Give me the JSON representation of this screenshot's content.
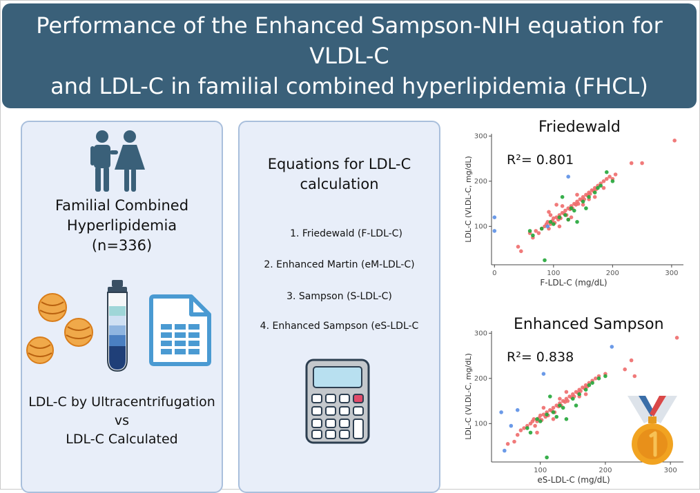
{
  "header": {
    "title_line1": "Performance of the Enhanced Sampson-NIH equation for VLDL-C",
    "title_line2": "and LDL-C in familial combined hyperlipidemia (FHCL)"
  },
  "left_panel": {
    "cohort_line1": "Familial Combined",
    "cohort_line2": "Hyperlipidemia",
    "cohort_n": "(n=336)",
    "compare_line1": "LDL-C by Ultracentrifugation",
    "compare_vs": "vs",
    "compare_line2": "LDL-C Calculated",
    "icons": [
      "people-icon",
      "lipoprotein-particles-icon",
      "test-tube-icon",
      "spreadsheet-icon"
    ]
  },
  "middle_panel": {
    "heading_line1": "Equations for LDL-C",
    "heading_line2": "calculation",
    "equations": [
      "1.  Friedewald (F-LDL-C)",
      "2. Enhanced Martin (eM-LDL-C)",
      "3. Sampson (S-LDL-C)",
      "4. Enhanced Sampson (eS-LDL-C"
    ],
    "icons": [
      "calculator-icon"
    ]
  },
  "colors": {
    "banner": "#3a6079",
    "panel_bg": "#e8eef9",
    "panel_border": "#a9bfdc",
    "series_red": "#ee6b6b",
    "series_green": "#22a638",
    "series_blue": "#5b8fe6",
    "medal_gold": "#f1a321"
  },
  "chart_data": [
    {
      "type": "scatter",
      "title": "Friedewald",
      "annotation": "R²= 0.801",
      "xlabel": "F-LDL-C (mg/dL)",
      "ylabel": "LDL-C (VLDL-C, mg/dL)",
      "xlim": [
        -5,
        320
      ],
      "ylim": [
        15,
        305
      ],
      "x_ticks": [
        0,
        100,
        200,
        300
      ],
      "y_ticks": [
        100,
        200,
        300
      ],
      "grid": false,
      "series": [
        {
          "color": "#ee6b6b",
          "points": [
            [
              305,
              290
            ],
            [
              232,
              240
            ],
            [
              250,
              240
            ],
            [
              40,
              55
            ],
            [
              45,
              45
            ],
            [
              60,
              85
            ],
            [
              65,
              75
            ],
            [
              70,
              90
            ],
            [
              75,
              85
            ],
            [
              80,
              95
            ],
            [
              85,
              100
            ],
            [
              88,
              105
            ],
            [
              90,
              110
            ],
            [
              92,
              95
            ],
            [
              95,
              105
            ],
            [
              98,
              112
            ],
            [
              100,
              118
            ],
            [
              102,
              108
            ],
            [
              105,
              120
            ],
            [
              108,
              115
            ],
            [
              110,
              125
            ],
            [
              112,
              118
            ],
            [
              115,
              130
            ],
            [
              118,
              128
            ],
            [
              120,
              135
            ],
            [
              122,
              125
            ],
            [
              125,
              140
            ],
            [
              128,
              138
            ],
            [
              130,
              145
            ],
            [
              132,
              140
            ],
            [
              135,
              150
            ],
            [
              138,
              148
            ],
            [
              140,
              155
            ],
            [
              142,
              150
            ],
            [
              145,
              160
            ],
            [
              148,
              158
            ],
            [
              150,
              165
            ],
            [
              152,
              160
            ],
            [
              155,
              170
            ],
            [
              158,
              168
            ],
            [
              160,
              175
            ],
            [
              162,
              172
            ],
            [
              165,
              180
            ],
            [
              168,
              178
            ],
            [
              170,
              185
            ],
            [
              172,
              182
            ],
            [
              175,
              190
            ],
            [
              180,
              195
            ],
            [
              185,
              200
            ],
            [
              190,
              205
            ],
            [
              195,
              210
            ],
            [
              200,
              205
            ],
            [
              205,
              215
            ],
            [
              105,
              148
            ],
            [
              92,
              132
            ],
            [
              130,
              120
            ],
            [
              150,
              148
            ],
            [
              140,
              170
            ],
            [
              160,
              160
            ],
            [
              125,
              115
            ],
            [
              110,
              100
            ],
            [
              95,
              125
            ],
            [
              170,
              165
            ],
            [
              185,
              185
            ],
            [
              115,
              145
            ]
          ]
        },
        {
          "color": "#22a638",
          "points": [
            [
              65,
              80
            ],
            [
              80,
              95
            ],
            [
              95,
              110
            ],
            [
              100,
              105
            ],
            [
              110,
              120
            ],
            [
              120,
              125
            ],
            [
              125,
              115
            ],
            [
              130,
              140
            ],
            [
              135,
              135
            ],
            [
              150,
              155
            ],
            [
              160,
              165
            ],
            [
              170,
              175
            ],
            [
              175,
              185
            ],
            [
              180,
              190
            ],
            [
              190,
              220
            ],
            [
              200,
              200
            ],
            [
              115,
              165
            ],
            [
              140,
              110
            ],
            [
              155,
              140
            ],
            [
              85,
              25
            ],
            [
              60,
              90
            ]
          ]
        },
        {
          "color": "#5b8fe6",
          "points": [
            [
              0,
              120
            ],
            [
              0,
              90
            ],
            [
              125,
              210
            ],
            [
              90,
              100
            ]
          ]
        }
      ]
    },
    {
      "type": "scatter",
      "title": "Enhanced Sampson",
      "annotation": "R²= 0.838",
      "xlabel": "eS-LDL-C (mg/dL)",
      "ylabel": "LDL-C (VLDL-C, mg/dL)",
      "xlim": [
        25,
        320
      ],
      "ylim": [
        15,
        305
      ],
      "x_ticks": [
        100,
        200,
        300
      ],
      "y_ticks": [
        100,
        200,
        300
      ],
      "grid": false,
      "series": [
        {
          "color": "#ee6b6b",
          "points": [
            [
              310,
              290
            ],
            [
              240,
              240
            ],
            [
              245,
              205
            ],
            [
              230,
              220
            ],
            [
              50,
              55
            ],
            [
              60,
              60
            ],
            [
              65,
              75
            ],
            [
              70,
              85
            ],
            [
              75,
              90
            ],
            [
              80,
              95
            ],
            [
              85,
              100
            ],
            [
              88,
              105
            ],
            [
              90,
              110
            ],
            [
              92,
              95
            ],
            [
              95,
              105
            ],
            [
              98,
              112
            ],
            [
              100,
              118
            ],
            [
              102,
              108
            ],
            [
              105,
              120
            ],
            [
              108,
              115
            ],
            [
              110,
              125
            ],
            [
              112,
              118
            ],
            [
              115,
              130
            ],
            [
              118,
              128
            ],
            [
              120,
              135
            ],
            [
              122,
              125
            ],
            [
              125,
              140
            ],
            [
              128,
              138
            ],
            [
              130,
              145
            ],
            [
              132,
              140
            ],
            [
              135,
              150
            ],
            [
              138,
              148
            ],
            [
              140,
              155
            ],
            [
              142,
              150
            ],
            [
              145,
              160
            ],
            [
              148,
              158
            ],
            [
              150,
              165
            ],
            [
              152,
              160
            ],
            [
              155,
              170
            ],
            [
              158,
              168
            ],
            [
              160,
              175
            ],
            [
              162,
              172
            ],
            [
              165,
              180
            ],
            [
              168,
              178
            ],
            [
              170,
              185
            ],
            [
              172,
              182
            ],
            [
              175,
              190
            ],
            [
              180,
              195
            ],
            [
              185,
              200
            ],
            [
              190,
              205
            ],
            [
              200,
              210
            ],
            [
              120,
              110
            ],
            [
              140,
              170
            ],
            [
              160,
              160
            ],
            [
              105,
              135
            ],
            [
              95,
              80
            ],
            [
              130,
              155
            ],
            [
              170,
              165
            ]
          ]
        },
        {
          "color": "#22a638",
          "points": [
            [
              80,
              90
            ],
            [
              95,
              110
            ],
            [
              100,
              105
            ],
            [
              110,
              120
            ],
            [
              120,
              125
            ],
            [
              125,
              115
            ],
            [
              130,
              140
            ],
            [
              135,
              135
            ],
            [
              150,
              155
            ],
            [
              160,
              165
            ],
            [
              170,
              175
            ],
            [
              175,
              185
            ],
            [
              180,
              190
            ],
            [
              190,
              200
            ],
            [
              200,
              205
            ],
            [
              115,
              160
            ],
            [
              140,
              110
            ],
            [
              155,
              140
            ],
            [
              110,
              25
            ],
            [
              85,
              80
            ]
          ]
        },
        {
          "color": "#5b8fe6",
          "points": [
            [
              45,
              40
            ],
            [
              40,
              125
            ],
            [
              105,
              210
            ],
            [
              210,
              270
            ],
            [
              65,
              130
            ],
            [
              55,
              95
            ]
          ]
        }
      ]
    }
  ]
}
